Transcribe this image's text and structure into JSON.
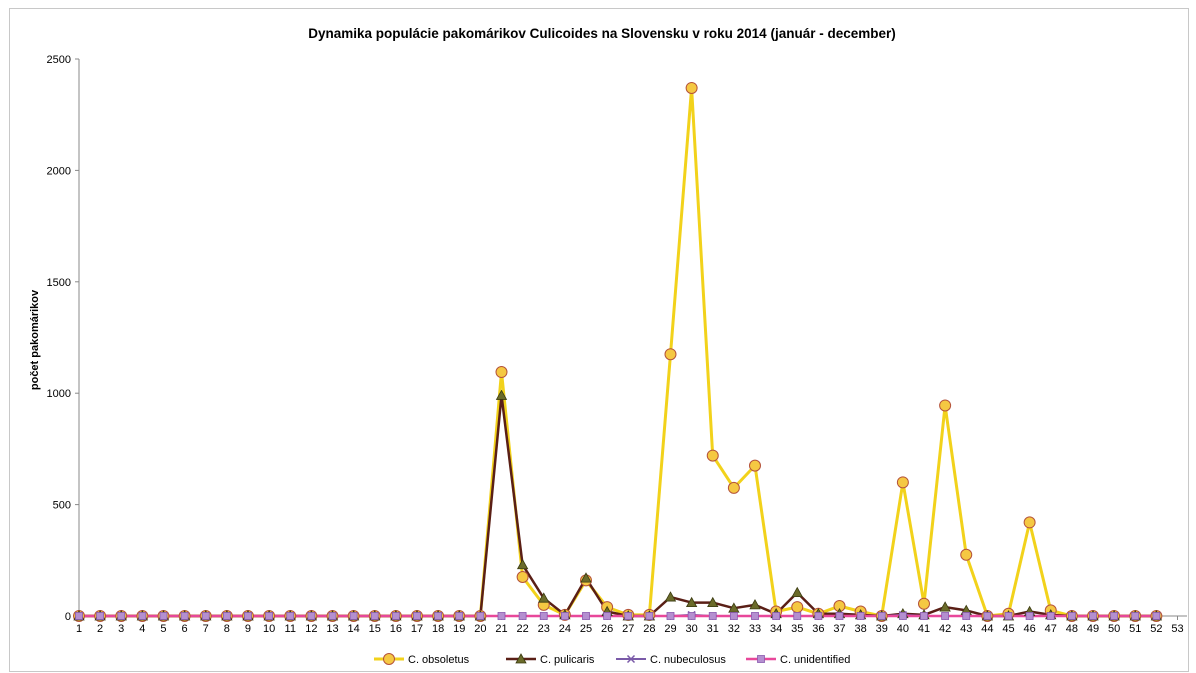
{
  "chart_data": {
    "type": "line",
    "title": "Dynamika populácie pakomárikov Culicoides na Slovensku v roku  2014 (január - december)",
    "xlabel": "",
    "ylabel": "počet pakomárikov",
    "x_ticks": [
      1,
      2,
      3,
      4,
      5,
      6,
      7,
      8,
      9,
      10,
      11,
      12,
      13,
      14,
      15,
      16,
      17,
      18,
      19,
      20,
      21,
      22,
      23,
      24,
      25,
      26,
      27,
      28,
      29,
      30,
      31,
      32,
      33,
      34,
      35,
      36,
      37,
      38,
      39,
      40,
      41,
      42,
      43,
      44,
      45,
      46,
      47,
      48,
      49,
      50,
      51,
      52,
      53
    ],
    "y_ticks": [
      0,
      500,
      1000,
      1500,
      2000,
      2500
    ],
    "xlim": [
      1,
      53
    ],
    "ylim": [
      0,
      2500
    ],
    "grid": false,
    "legend_position": "bottom",
    "x": [
      1,
      2,
      3,
      4,
      5,
      6,
      7,
      8,
      9,
      10,
      11,
      12,
      13,
      14,
      15,
      16,
      17,
      18,
      19,
      20,
      21,
      22,
      23,
      24,
      25,
      26,
      27,
      28,
      29,
      30,
      31,
      32,
      33,
      34,
      35,
      36,
      37,
      38,
      39,
      40,
      41,
      42,
      43,
      44,
      45,
      46,
      47,
      48,
      49,
      50,
      51,
      52
    ],
    "series": [
      {
        "name": "C. obsoletus",
        "color": "#f2d21b",
        "marker_fill": "#f5c842",
        "marker_stroke": "#b5533a",
        "marker": "circle",
        "values": [
          0,
          0,
          0,
          0,
          0,
          0,
          0,
          0,
          0,
          0,
          0,
          0,
          0,
          0,
          0,
          0,
          0,
          0,
          0,
          0,
          1095,
          175,
          50,
          5,
          160,
          40,
          5,
          5,
          1175,
          2370,
          720,
          575,
          675,
          20,
          40,
          10,
          45,
          20,
          0,
          600,
          55,
          945,
          275,
          0,
          10,
          420,
          25,
          0,
          0,
          0,
          0,
          0
        ]
      },
      {
        "name": "C. pulicaris",
        "color": "#5a1f16",
        "marker_fill": "#6b6b2a",
        "marker_stroke": "#3a3a10",
        "marker": "triangle",
        "values": [
          0,
          0,
          0,
          0,
          0,
          0,
          0,
          0,
          0,
          0,
          0,
          0,
          0,
          0,
          0,
          0,
          0,
          0,
          0,
          0,
          990,
          230,
          80,
          5,
          170,
          20,
          0,
          0,
          85,
          60,
          60,
          35,
          50,
          10,
          105,
          10,
          10,
          5,
          0,
          10,
          5,
          40,
          25,
          0,
          0,
          20,
          5,
          0,
          0,
          0,
          0,
          0
        ]
      },
      {
        "name": "C. nubeculosus",
        "color": "#7a5aa8",
        "marker": "x",
        "values": [
          0,
          0,
          0,
          0,
          0,
          0,
          0,
          0,
          0,
          0,
          0,
          0,
          0,
          0,
          0,
          0,
          0,
          0,
          0,
          0,
          0,
          0,
          0,
          0,
          0,
          0,
          0,
          0,
          0,
          5,
          0,
          0,
          0,
          0,
          0,
          0,
          0,
          0,
          0,
          5,
          0,
          0,
          0,
          0,
          0,
          0,
          0,
          0,
          0,
          0,
          0,
          0
        ]
      },
      {
        "name": "C. unidentified",
        "color": "#e8479a",
        "marker_fill": "#b48fd0",
        "marker_stroke": "#8a5ab0",
        "marker": "square",
        "values": [
          0,
          0,
          0,
          0,
          0,
          0,
          0,
          0,
          0,
          0,
          0,
          0,
          0,
          0,
          0,
          0,
          0,
          0,
          0,
          0,
          0,
          0,
          0,
          0,
          0,
          0,
          0,
          0,
          0,
          0,
          0,
          0,
          0,
          0,
          0,
          0,
          0,
          0,
          0,
          0,
          0,
          0,
          0,
          0,
          0,
          0,
          0,
          0,
          0,
          0,
          0,
          0
        ]
      }
    ]
  }
}
